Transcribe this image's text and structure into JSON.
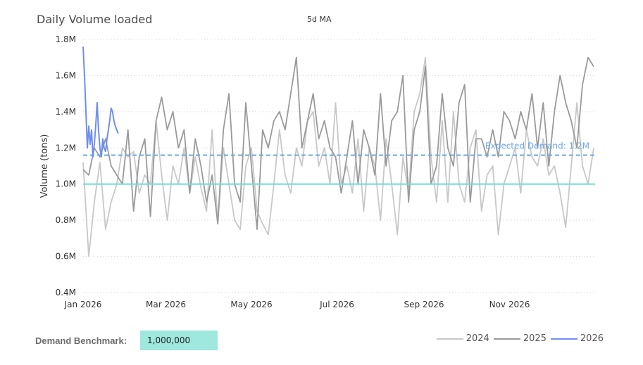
{
  "chart_data": {
    "type": "line",
    "title": "Daily Volume loaded",
    "subtitle": "5d MA",
    "xlabel": "",
    "ylabel": "Volume (tons)",
    "ylim": [
      400000,
      1800000
    ],
    "y_ticks": [
      400000,
      600000,
      800000,
      1000000,
      1200000,
      1400000,
      1600000,
      1800000
    ],
    "y_tick_labels": [
      "0.4M",
      "0.6M",
      "0.8M",
      "1.0M",
      "1.2M",
      "1.4M",
      "1.6M",
      "1.8M"
    ],
    "xlim": [
      0,
      365
    ],
    "x_tick_labels": [
      "Jan 2026",
      "Mar 2026",
      "May 2026",
      "Jul 2026",
      "Sep 2026",
      "Nov 2026"
    ],
    "x_tick_days": [
      0,
      59,
      120,
      181,
      243,
      304
    ],
    "reference_lines": [
      {
        "name": "Demand Benchmark",
        "value": 1000000,
        "color": "#6fe0d2",
        "style": "solid"
      },
      {
        "name": "Expected Demand",
        "value": 1160000,
        "label": "Expected Demand: 1.2M",
        "color": "#69a7ea",
        "style": "dashed"
      }
    ],
    "series": [
      {
        "name": "2024",
        "color": "#c8c8c8",
        "x": [
          0,
          4,
          8,
          12,
          16,
          20,
          24,
          28,
          32,
          36,
          40,
          44,
          48,
          52,
          56,
          60,
          64,
          68,
          72,
          76,
          80,
          84,
          88,
          92,
          96,
          100,
          104,
          108,
          112,
          116,
          120,
          124,
          128,
          132,
          136,
          140,
          144,
          148,
          152,
          156,
          160,
          164,
          168,
          172,
          176,
          180,
          184,
          188,
          192,
          196,
          200,
          204,
          208,
          212,
          216,
          220,
          224,
          228,
          232,
          236,
          240,
          244,
          248,
          252,
          256,
          260,
          264,
          268,
          272,
          276,
          280,
          284,
          288,
          292,
          296,
          300,
          304,
          308,
          312,
          316,
          320,
          324,
          328,
          332,
          336,
          340,
          344,
          348,
          352,
          356,
          360,
          364
        ],
        "values": [
          1120000,
          600000,
          900000,
          1120000,
          750000,
          900000,
          1000000,
          1200000,
          1150000,
          1180000,
          950000,
          1050000,
          1000000,
          1350000,
          1050000,
          800000,
          1100000,
          1000000,
          1200000,
          950000,
          1150000,
          980000,
          850000,
          1300000,
          780000,
          1200000,
          1000000,
          800000,
          750000,
          1100000,
          1200000,
          850000,
          780000,
          720000,
          1000000,
          1300000,
          1050000,
          950000,
          1200000,
          1100000,
          1350000,
          1400000,
          1100000,
          1200000,
          1000000,
          1450000,
          1000000,
          1100000,
          950000,
          1250000,
          850000,
          1200000,
          1100000,
          800000,
          1250000,
          1000000,
          720000,
          1150000,
          950000,
          1400000,
          1500000,
          1700000,
          1150000,
          900000,
          1350000,
          900000,
          1400000,
          1000000,
          900000,
          1200000,
          1300000,
          850000,
          1050000,
          1100000,
          720000,
          1000000,
          1100000,
          1200000,
          950000,
          1300000,
          1150000,
          1100000,
          1250000,
          1050000,
          1100000,
          950000,
          760000,
          1100000,
          1450000,
          1100000,
          1000000,
          1200000
        ]
      },
      {
        "name": "2025",
        "color": "#9a9a9a",
        "x": [
          0,
          4,
          8,
          12,
          16,
          20,
          24,
          28,
          32,
          36,
          40,
          44,
          48,
          52,
          56,
          60,
          64,
          68,
          72,
          76,
          80,
          84,
          88,
          92,
          96,
          100,
          104,
          108,
          112,
          116,
          120,
          124,
          128,
          132,
          136,
          140,
          144,
          148,
          152,
          156,
          160,
          164,
          168,
          172,
          176,
          180,
          184,
          188,
          192,
          196,
          200,
          204,
          208,
          212,
          216,
          220,
          224,
          228,
          232,
          236,
          240,
          244,
          248,
          252,
          256,
          260,
          264,
          268,
          272,
          276,
          280,
          284,
          288,
          292,
          296,
          300,
          304,
          308,
          312,
          316,
          320,
          324,
          328,
          332,
          336,
          340,
          344,
          348,
          352,
          356,
          360,
          364
        ],
        "values": [
          1080000,
          1050000,
          1200000,
          1150000,
          1250000,
          1100000,
          1050000,
          1000000,
          1300000,
          850000,
          1150000,
          1250000,
          820000,
          1350000,
          1480000,
          1300000,
          1400000,
          1200000,
          1300000,
          950000,
          1250000,
          1100000,
          900000,
          1050000,
          780000,
          1300000,
          1500000,
          1000000,
          900000,
          1450000,
          1100000,
          750000,
          1300000,
          1200000,
          1350000,
          1400000,
          1300000,
          1500000,
          1700000,
          1200000,
          1350000,
          1500000,
          1250000,
          1350000,
          1200000,
          1150000,
          950000,
          1150000,
          1350000,
          1000000,
          1300000,
          1200000,
          1050000,
          1500000,
          1100000,
          1350000,
          1400000,
          1600000,
          900000,
          1300000,
          1400000,
          1650000,
          1000000,
          1100000,
          1500000,
          1200000,
          1100000,
          1450000,
          1550000,
          900000,
          1250000,
          1250000,
          1150000,
          1300000,
          1150000,
          1400000,
          1350000,
          1250000,
          1400000,
          1300000,
          1500000,
          1200000,
          1450000,
          1100000,
          1400000,
          1600000,
          1450000,
          1350000,
          1200000,
          1550000,
          1700000,
          1650000
        ]
      },
      {
        "name": "2026",
        "color": "#6f8fee",
        "x": [
          0,
          1,
          2,
          3,
          4,
          5,
          6,
          7,
          8,
          9,
          10,
          11,
          12,
          13,
          14,
          15,
          16,
          17,
          18,
          19,
          20,
          21,
          22,
          23,
          24,
          25
        ],
        "values": [
          1760000,
          1600000,
          1400000,
          1200000,
          1320000,
          1220000,
          1300000,
          1150000,
          1220000,
          1320000,
          1450000,
          1300000,
          1200000,
          1150000,
          1250000,
          1200000,
          1180000,
          1250000,
          1300000,
          1350000,
          1420000,
          1400000,
          1350000,
          1320000,
          1300000,
          1280000
        ]
      }
    ]
  },
  "benchmark": {
    "label": "Demand Benchmark:",
    "value": "1,000,000"
  },
  "legend": {
    "items": [
      {
        "label": "2024",
        "color": "#c8c8c8"
      },
      {
        "label": "2025",
        "color": "#9a9a9a"
      },
      {
        "label": "2026",
        "color": "#6f8fee"
      }
    ]
  }
}
